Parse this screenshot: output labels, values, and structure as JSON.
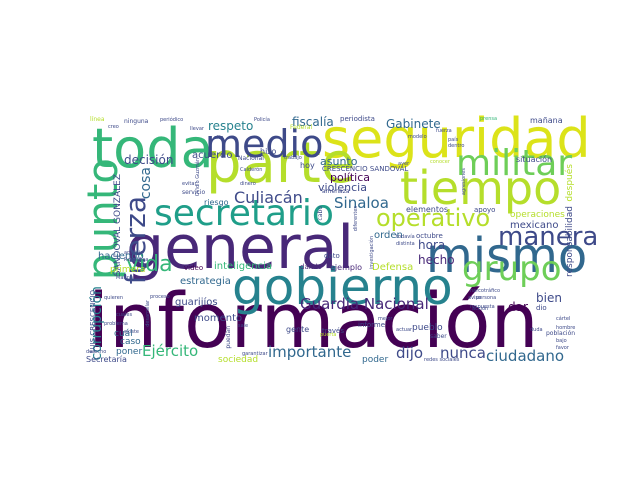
{
  "colors": {
    "purple": "#440154",
    "indigo": "#482878",
    "blue": "#3e4a89",
    "steel": "#31688e",
    "teal": "#26828e",
    "green_teal": "#1f9e89",
    "green": "#35b779",
    "lime": "#6ece58",
    "yellow_green": "#b5de2b",
    "yellow": "#fde725"
  },
  "words": [
    {
      "text": "información"
    },
    {
      "text": "general"
    },
    {
      "text": "seguridad"
    },
    {
      "text": "toda"
    },
    {
      "text": "parte"
    },
    {
      "text": "gobierno"
    },
    {
      "text": "mismo"
    },
    {
      "text": "tiempo"
    },
    {
      "text": "medio"
    },
    {
      "text": "militar"
    },
    {
      "text": "secretario"
    },
    {
      "text": "punto"
    },
    {
      "text": "grupo"
    },
    {
      "text": "manera"
    },
    {
      "text": "operativo"
    },
    {
      "text": "fuerza"
    },
    {
      "text": "vida"
    },
    {
      "text": "Culiacán"
    },
    {
      "text": "Sinaloa"
    },
    {
      "text": "Guardia Nacional"
    },
    {
      "text": "dijo"
    },
    {
      "text": "nunca"
    },
    {
      "text": "ciudadano"
    },
    {
      "text": "importante"
    },
    {
      "text": "Ejército"
    },
    {
      "text": "corrupción"
    },
    {
      "text": "respeto"
    },
    {
      "text": "fiscalía"
    },
    {
      "text": "Gabinete"
    },
    {
      "text": "política"
    },
    {
      "text": "violencia"
    },
    {
      "text": "decisión"
    },
    {
      "text": "asunto"
    },
    {
      "text": "acuerdo"
    },
    {
      "text": "hora"
    },
    {
      "text": "hecho"
    },
    {
      "text": "bien"
    },
    {
      "text": "dar"
    },
    {
      "text": "mexicano"
    },
    {
      "text": "orden"
    },
    {
      "text": "Defensa"
    },
    {
      "text": "inteligencia"
    },
    {
      "text": "estrategia"
    },
    {
      "text": "guarijíos"
    },
    {
      "text": "momento"
    },
    {
      "text": "cosa"
    },
    {
      "text": "SANDOVAL GONZÁLEZ"
    },
    {
      "text": "haciendo"
    },
    {
      "text": "primera"
    },
    {
      "text": "cuál"
    },
    {
      "text": "caso"
    },
    {
      "text": "poner"
    },
    {
      "text": "sociedad"
    },
    {
      "text": "pueblo"
    },
    {
      "text": "poder"
    },
    {
      "text": "operaciones"
    },
    {
      "text": "responsabilidad"
    },
    {
      "text": "después"
    },
    {
      "text": "situación"
    },
    {
      "text": "mañana"
    },
    {
      "text": "periodista"
    },
    {
      "text": "Secretaría"
    },
    {
      "text": "LUIS CRESCENCIO"
    },
    {
      "text": "CRESCENCIO SANDOVAL"
    },
    {
      "text": "elementos"
    },
    {
      "text": "ejemplo"
    },
    {
      "text": "hoy"
    },
    {
      "text": "hizo"
    },
    {
      "text": "riesgo"
    },
    {
      "text": "video"
    },
    {
      "text": "gente"
    },
    {
      "text": "dato"
    },
    {
      "text": "dando"
    },
    {
      "text": "través"
    },
    {
      "text": "informe"
    },
    {
      "text": "octubre"
    },
    {
      "text": "apoyo"
    },
    {
      "text": "dio"
    },
    {
      "text": "Nacional"
    },
    {
      "text": "servicio"
    },
    {
      "text": "Federal"
    },
    {
      "text": "línea"
    },
    {
      "text": "ninguna"
    },
    {
      "text": "periódico"
    },
    {
      "text": "Policía"
    },
    {
      "text": "trabajo"
    },
    {
      "text": "país"
    },
    {
      "text": "dentro"
    },
    {
      "text": "redes sociales"
    },
    {
      "text": "respuesta"
    },
    {
      "text": "persona"
    },
    {
      "text": "población"
    },
    {
      "text": "duda"
    },
    {
      "text": "cártel"
    },
    {
      "text": "narcotráfico"
    },
    {
      "text": "investigación"
    },
    {
      "text": "Ovidio Guzmán"
    },
    {
      "text": "análisis"
    },
    {
      "text": "República"
    },
    {
      "text": "quieren"
    },
    {
      "text": "problema"
    },
    {
      "text": "cuales"
    },
    {
      "text": "derecho"
    },
    {
      "text": "Marina"
    },
    {
      "text": "evitar"
    },
    {
      "text": "Calderón"
    },
    {
      "text": "dinero"
    },
    {
      "text": "amenaza"
    },
    {
      "text": "diferentes"
    },
    {
      "text": "todavía"
    },
    {
      "text": "distinta"
    },
    {
      "text": "mejor"
    },
    {
      "text": "existe"
    },
    {
      "text": "proceso"
    },
    {
      "text": "desarrollar"
    },
    {
      "text": "garantizar"
    },
    {
      "text": "puedan"
    },
    {
      "text": "puerta"
    },
    {
      "text": "llevar"
    },
    {
      "text": "creo"
    },
    {
      "text": "alto"
    },
    {
      "text": "conocer"
    },
    {
      "text": "fuerza"
    },
    {
      "text": "prensa"
    },
    {
      "text": "modelo"
    },
    {
      "text": "aviso"
    },
    {
      "text": "favor"
    },
    {
      "text": "hombre"
    },
    {
      "text": "cabo"
    },
    {
      "text": "actuar"
    },
    {
      "text": "saber"
    },
    {
      "text": "acción"
    },
    {
      "text": "agresiones"
    },
    {
      "text": "sale"
    },
    {
      "text": "bajo"
    },
    {
      "text": "ayer"
    }
  ]
}
